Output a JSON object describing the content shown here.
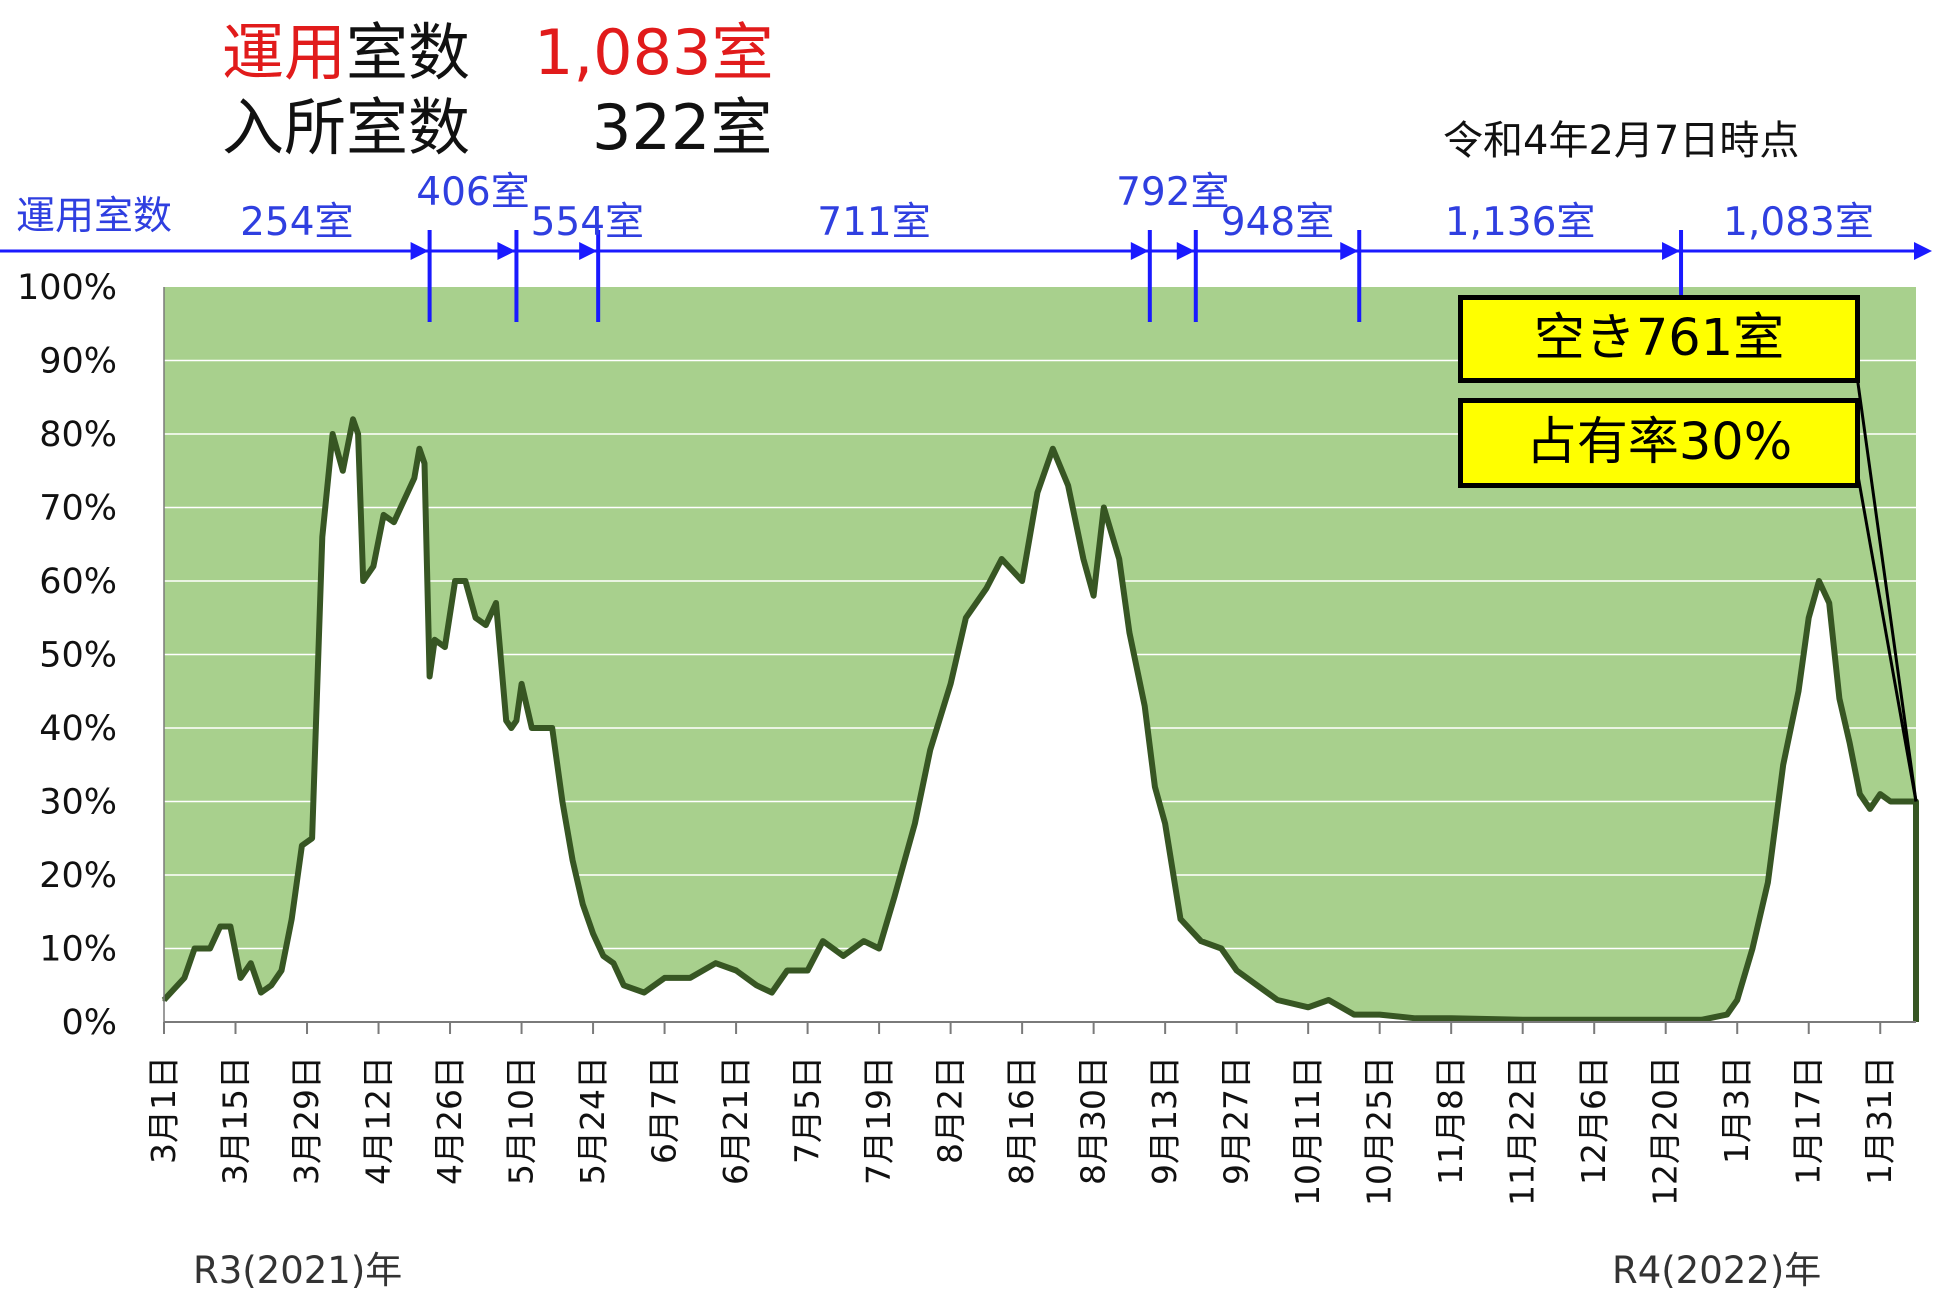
{
  "header": {
    "unyo_prefix": "運用",
    "unyo_suffix": "室数",
    "unyo_value": "1,083室",
    "nyusho_label": "入所室数",
    "nyusho_value": "322室",
    "as_of": "令和4年2月7日時点"
  },
  "callouts": {
    "vacant": "空き761室",
    "occupancy": "占有率30%"
  },
  "year_labels": {
    "left": "R3(2021)年",
    "right": "R4(2022)年"
  },
  "colors": {
    "area_fill": "#a8d08d",
    "line": "#375623",
    "arrow": "#1a1aff",
    "highlight_red": "#e11b1b",
    "callout_bg": "#ffff00"
  },
  "chart_data": {
    "type": "area",
    "title": "",
    "ylabel": "",
    "xlabel": "",
    "ylim": [
      0,
      100
    ],
    "y_ticks": [
      "100%",
      "90%",
      "80%",
      "70%",
      "60%",
      "50%",
      "40%",
      "30%",
      "20%",
      "10%",
      "0%"
    ],
    "x_tick_labels": [
      "3月1日",
      "3月15日",
      "3月29日",
      "4月12日",
      "4月26日",
      "5月10日",
      "5月24日",
      "6月7日",
      "6月21日",
      "7月5日",
      "7月19日",
      "8月2日",
      "8月16日",
      "8月30日",
      "9月13日",
      "9月27日",
      "10月11日",
      "10月25日",
      "11月8日",
      "11月22日",
      "12月6日",
      "12月20日",
      "1月3日",
      "1月17日",
      "1月31日"
    ],
    "x_start": "2021-03-01",
    "x_end": "2022-02-07",
    "grid": true,
    "capacity_segments": {
      "axis_label": "運用室数",
      "labels": [
        "254室",
        "406室",
        "554室",
        "711室",
        "792室",
        "948室",
        "1,136室",
        "1,083室"
      ],
      "boundaries": [
        "2021-04-22",
        "2021-05-09",
        "2021-05-25",
        "2021-09-10",
        "2021-09-19",
        "2021-10-21",
        "2021-12-23"
      ]
    },
    "series": [
      {
        "x": [
          "2021-03-01",
          "2021-03-05",
          "2021-03-07",
          "2021-03-10",
          "2021-03-12",
          "2021-03-14",
          "2021-03-16",
          "2021-03-18",
          "2021-03-20",
          "2021-03-22",
          "2021-03-24",
          "2021-03-26",
          "2021-03-28",
          "2021-03-30",
          "2021-04-01",
          "2021-04-03",
          "2021-04-05",
          "2021-04-07",
          "2021-04-08",
          "2021-04-09",
          "2021-04-11",
          "2021-04-13",
          "2021-04-15",
          "2021-04-17",
          "2021-04-19",
          "2021-04-20",
          "2021-04-21",
          "2021-04-22",
          "2021-04-23",
          "2021-04-25",
          "2021-04-27",
          "2021-04-29",
          "2021-05-01",
          "2021-05-03",
          "2021-05-05",
          "2021-05-07",
          "2021-05-08",
          "2021-05-09",
          "2021-05-10",
          "2021-05-12",
          "2021-05-14",
          "2021-05-16",
          "2021-05-18",
          "2021-05-20",
          "2021-05-22",
          "2021-05-24",
          "2021-05-26",
          "2021-05-28",
          "2021-05-30",
          "2021-06-03",
          "2021-06-07",
          "2021-06-12",
          "2021-06-17",
          "2021-06-21",
          "2021-06-25",
          "2021-06-28",
          "2021-07-01",
          "2021-07-05",
          "2021-07-08",
          "2021-07-12",
          "2021-07-16",
          "2021-07-19",
          "2021-07-22",
          "2021-07-26",
          "2021-07-29",
          "2021-08-02",
          "2021-08-05",
          "2021-08-09",
          "2021-08-12",
          "2021-08-16",
          "2021-08-19",
          "2021-08-22",
          "2021-08-25",
          "2021-08-28",
          "2021-08-30",
          "2021-09-01",
          "2021-09-04",
          "2021-09-06",
          "2021-09-09",
          "2021-09-11",
          "2021-09-13",
          "2021-09-16",
          "2021-09-20",
          "2021-09-24",
          "2021-09-27",
          "2021-10-01",
          "2021-10-05",
          "2021-10-11",
          "2021-10-15",
          "2021-10-20",
          "2021-10-25",
          "2021-11-01",
          "2021-11-08",
          "2021-11-22",
          "2021-12-06",
          "2021-12-20",
          "2021-12-27",
          "2022-01-01",
          "2022-01-03",
          "2022-01-06",
          "2022-01-09",
          "2022-01-12",
          "2022-01-15",
          "2022-01-17",
          "2022-01-19",
          "2022-01-21",
          "2022-01-23",
          "2022-01-25",
          "2022-01-27",
          "2022-01-29",
          "2022-01-31",
          "2022-02-02",
          "2022-02-05",
          "2022-02-07"
        ],
        "values": [
          3,
          6,
          10,
          10,
          13,
          13,
          6,
          8,
          4,
          5,
          7,
          14,
          24,
          25,
          66,
          80,
          75,
          82,
          80,
          60,
          62,
          69,
          68,
          71,
          74,
          78,
          76,
          47,
          52,
          51,
          60,
          60,
          55,
          54,
          57,
          41,
          40,
          41,
          46,
          40,
          40,
          40,
          30,
          22,
          16,
          12,
          9,
          8,
          5,
          4,
          6,
          6,
          8,
          7,
          5,
          4,
          7,
          7,
          11,
          9,
          11,
          10,
          17,
          27,
          37,
          46,
          55,
          59,
          63,
          60,
          72,
          78,
          73,
          63,
          58,
          70,
          63,
          53,
          43,
          32,
          27,
          14,
          11,
          10,
          7,
          5,
          3,
          2,
          3,
          1,
          1,
          0.5,
          0.5,
          0.3,
          0.3,
          0.3,
          0.3,
          1,
          3,
          10,
          19,
          35,
          45,
          55,
          60,
          57,
          44,
          38,
          31,
          29,
          31,
          30,
          30,
          30
        ]
      }
    ]
  }
}
